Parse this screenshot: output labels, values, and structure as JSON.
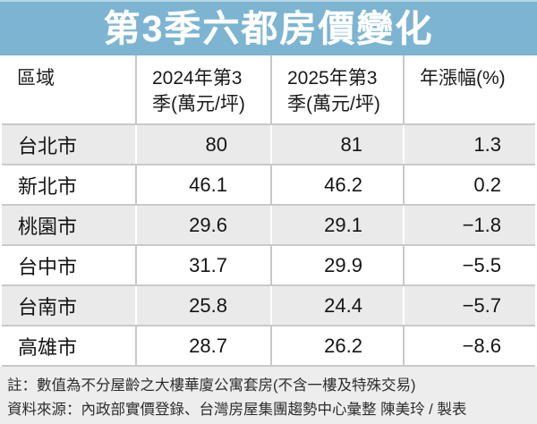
{
  "title": "第3季六都房價變化",
  "table": {
    "columns": [
      "區域",
      "2024年第3季(萬元/坪)",
      "2025年第3季(萬元/坪)",
      "年漲幅(%)"
    ],
    "rows": [
      {
        "region": "台北市",
        "y2024": "80",
        "y2025": "81",
        "change": "1.3"
      },
      {
        "region": "新北市",
        "y2024": "46.1",
        "y2025": "46.2",
        "change": "0.2"
      },
      {
        "region": "桃園市",
        "y2024": "29.6",
        "y2025": "29.1",
        "change": "−1.8"
      },
      {
        "region": "台中市",
        "y2024": "31.7",
        "y2025": "29.9",
        "change": "−5.5"
      },
      {
        "region": "台南市",
        "y2024": "25.8",
        "y2025": "24.4",
        "change": "−5.7"
      },
      {
        "region": "高雄市",
        "y2024": "28.7",
        "y2025": "26.2",
        "change": "−8.6"
      }
    ]
  },
  "notes": {
    "note": "註：數值為不分屋齡之大樓華廈公寓套房(不含一樓及特殊交易)",
    "source": "資料來源：內政部實價登錄、台灣房屋集團趨勢中心彙整 陳美玲 / 製表"
  },
  "colors": {
    "title_bar": "#7cb4d1",
    "title_text": "#ffffff",
    "row_alt_bg": "#eaeaea",
    "divider": "#c9c9c9",
    "footer_bg": "#ededed"
  },
  "chart_data": {
    "type": "table",
    "title": "第3季六都房價變化",
    "columns": [
      "區域",
      "2024年第3季(萬元/坪)",
      "2025年第3季(萬元/坪)",
      "年漲幅(%)"
    ],
    "units": "萬元/坪",
    "rows": [
      [
        "台北市",
        80,
        81,
        1.3
      ],
      [
        "新北市",
        46.1,
        46.2,
        0.2
      ],
      [
        "桃園市",
        29.6,
        29.1,
        -1.8
      ],
      [
        "台中市",
        31.7,
        29.9,
        -5.5
      ],
      [
        "台南市",
        25.8,
        24.4,
        -5.7
      ],
      [
        "高雄市",
        28.7,
        26.2,
        -8.6
      ]
    ],
    "note": "數值為不分屋齡之大樓華廈公寓套房(不含一樓及特殊交易)",
    "source": "內政部實價登錄、台灣房屋集團趨勢中心彙整",
    "credit": "陳美玲 / 製表"
  }
}
